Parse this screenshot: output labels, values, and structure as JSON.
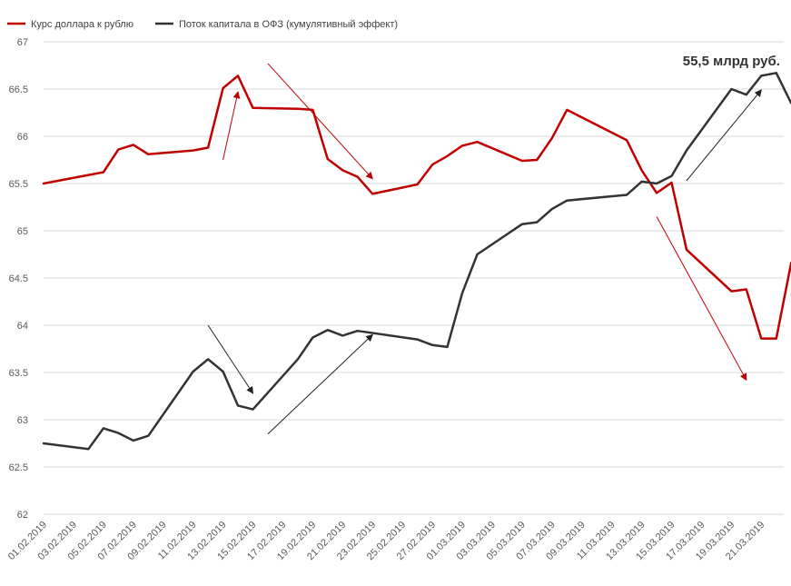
{
  "chart_data": {
    "type": "line",
    "y_axis": {
      "min": 62,
      "max": 67,
      "ticks": [
        {
          "value": 62,
          "label": "62"
        },
        {
          "value": 62.5,
          "label": "62.5"
        },
        {
          "value": 63,
          "label": "63"
        },
        {
          "value": 63.5,
          "label": "63.5"
        },
        {
          "value": 64,
          "label": "64"
        },
        {
          "value": 64.5,
          "label": "64.5"
        },
        {
          "value": 65,
          "label": "65"
        },
        {
          "value": 65.5,
          "label": "65.5"
        },
        {
          "value": 66,
          "label": "66"
        },
        {
          "value": 66.5,
          "label": "66.5"
        },
        {
          "value": 67,
          "label": "67"
        }
      ]
    },
    "x_axis": {
      "first_day": "01.02.2019",
      "last_day": "22.03.2019",
      "ticks": [
        {
          "day": "01.02.2019",
          "label": "01.02.2019"
        },
        {
          "day": "03.02.2019",
          "label": "03.02.2019"
        },
        {
          "day": "05.02.2019",
          "label": "05.02.2019"
        },
        {
          "day": "07.02.2019",
          "label": "07.02.2019"
        },
        {
          "day": "09.02.2019",
          "label": "09.02.2019"
        },
        {
          "day": "11.02.2019",
          "label": "11.02.2019"
        },
        {
          "day": "13.02.2019",
          "label": "13.02.2019"
        },
        {
          "day": "15.02.2019",
          "label": "15.02.2019"
        },
        {
          "day": "17.02.2019",
          "label": "17.02.2019"
        },
        {
          "day": "19.02.2019",
          "label": "19.02.2019"
        },
        {
          "day": "21.02.2019",
          "label": "21.02.2019"
        },
        {
          "day": "23.02.2019",
          "label": "23.02.2019"
        },
        {
          "day": "25.02.2019",
          "label": "25.02.2019"
        },
        {
          "day": "27.02.2019",
          "label": "27.02.2019"
        },
        {
          "day": "01.03.2019",
          "label": "01.03.2019"
        },
        {
          "day": "03.03.2019",
          "label": "03.03.2019"
        },
        {
          "day": "05.03.2019",
          "label": "05.03.2019"
        },
        {
          "day": "07.03.2019",
          "label": "07.03.2019"
        },
        {
          "day": "09.03.2019",
          "label": "09.03.2019"
        },
        {
          "day": "11.03.2019",
          "label": "11.03.2019"
        },
        {
          "day": "13.03.2019",
          "label": "13.03.2019"
        },
        {
          "day": "15.03.2019",
          "label": "15.03.2019"
        },
        {
          "day": "17.03.2019",
          "label": "17.03.2019"
        },
        {
          "day": "19.03.2019",
          "label": "19.03.2019"
        },
        {
          "day": "21.03.2019",
          "label": "21.03.2019"
        }
      ]
    },
    "grid": "horizontal",
    "legend_position": "top-left",
    "series": [
      {
        "name": "Курс доллара к рублю",
        "color": "#c00000",
        "points": [
          [
            "01.02.2019",
            65.5
          ],
          [
            "04.02.2019",
            65.59
          ],
          [
            "05.02.2019",
            65.62
          ],
          [
            "06.02.2019",
            65.86
          ],
          [
            "07.02.2019",
            65.91
          ],
          [
            "08.02.2019",
            65.81
          ],
          [
            "11.02.2019",
            65.85
          ],
          [
            "12.02.2019",
            65.88
          ],
          [
            "13.02.2019",
            66.51
          ],
          [
            "14.02.2019",
            66.64
          ],
          [
            "15.02.2019",
            66.3
          ],
          [
            "18.02.2019",
            66.29
          ],
          [
            "19.02.2019",
            66.28
          ],
          [
            "20.02.2019",
            65.76
          ],
          [
            "21.02.2019",
            65.64
          ],
          [
            "22.02.2019",
            65.57
          ],
          [
            "23.02.2019",
            65.39
          ],
          [
            "26.02.2019",
            65.49
          ],
          [
            "27.02.2019",
            65.7
          ],
          [
            "28.02.2019",
            65.79
          ],
          [
            "01.03.2019",
            65.9
          ],
          [
            "02.03.2019",
            65.94
          ],
          [
            "05.03.2019",
            65.74
          ],
          [
            "06.03.2019",
            65.75
          ],
          [
            "07.03.2019",
            65.98
          ],
          [
            "08.03.2019",
            66.28
          ],
          [
            "12.03.2019",
            65.96
          ],
          [
            "13.03.2019",
            65.64
          ],
          [
            "14.03.2019",
            65.4
          ],
          [
            "15.03.2019",
            65.51
          ],
          [
            "16.03.2019",
            64.8
          ],
          [
            "19.03.2019",
            64.36
          ],
          [
            "20.03.2019",
            64.38
          ],
          [
            "21.03.2019",
            63.86
          ],
          [
            "22.03.2019",
            63.86
          ],
          [
            "23.03.2019",
            64.66
          ]
        ]
      },
      {
        "name": "Поток капитала в ОФЗ (кумулятивный эффект)",
        "color": "#333333",
        "points": [
          [
            "01.02.2019",
            62.75
          ],
          [
            "04.02.2019",
            62.69
          ],
          [
            "05.02.2019",
            62.91
          ],
          [
            "06.02.2019",
            62.86
          ],
          [
            "07.02.2019",
            62.78
          ],
          [
            "08.02.2019",
            62.83
          ],
          [
            "11.02.2019",
            63.51
          ],
          [
            "12.02.2019",
            63.64
          ],
          [
            "13.02.2019",
            63.51
          ],
          [
            "14.02.2019",
            63.15
          ],
          [
            "15.02.2019",
            63.11
          ],
          [
            "18.02.2019",
            63.64
          ],
          [
            "19.02.2019",
            63.87
          ],
          [
            "20.02.2019",
            63.95
          ],
          [
            "21.02.2019",
            63.89
          ],
          [
            "22.02.2019",
            63.94
          ],
          [
            "26.02.2019",
            63.85
          ],
          [
            "27.02.2019",
            63.79
          ],
          [
            "28.02.2019",
            63.77
          ],
          [
            "01.03.2019",
            64.34
          ],
          [
            "02.03.2019",
            64.75
          ],
          [
            "05.03.2019",
            65.07
          ],
          [
            "06.03.2019",
            65.09
          ],
          [
            "07.03.2019",
            65.23
          ],
          [
            "08.03.2019",
            65.32
          ],
          [
            "12.03.2019",
            65.38
          ],
          [
            "13.03.2019",
            65.52
          ],
          [
            "14.03.2019",
            65.5
          ],
          [
            "15.03.2019",
            65.58
          ],
          [
            "16.03.2019",
            65.85
          ],
          [
            "19.03.2019",
            66.5
          ],
          [
            "20.03.2019",
            66.44
          ],
          [
            "21.03.2019",
            66.64
          ],
          [
            "22.03.2019",
            66.67
          ],
          [
            "23.03.2019",
            66.35
          ]
        ]
      }
    ],
    "arrows": [
      {
        "color": "#c00000",
        "from": [
          "13.02.2019",
          65.75
        ],
        "to": [
          "14.02.2019",
          66.47
        ]
      },
      {
        "color": "#c00000",
        "from": [
          "16.02.2019",
          66.77
        ],
        "to": [
          "23.02.2019",
          65.55
        ]
      },
      {
        "color": "#c00000",
        "from": [
          "14.03.2019",
          65.15
        ],
        "to": [
          "20.03.2019",
          63.42
        ]
      },
      {
        "color": "#222222",
        "from": [
          "12.02.2019",
          64.0
        ],
        "to": [
          "15.02.2019",
          63.28
        ]
      },
      {
        "color": "#222222",
        "from": [
          "16.02.2019",
          62.85
        ],
        "to": [
          "23.02.2019",
          63.9
        ]
      },
      {
        "color": "#222222",
        "from": [
          "16.03.2019",
          65.53
        ],
        "to": [
          "21.03.2019",
          66.49
        ]
      }
    ],
    "annotations": [
      {
        "text": "55,5 млрд руб.",
        "day": "19.03.2019",
        "value": 66.8
      }
    ]
  }
}
